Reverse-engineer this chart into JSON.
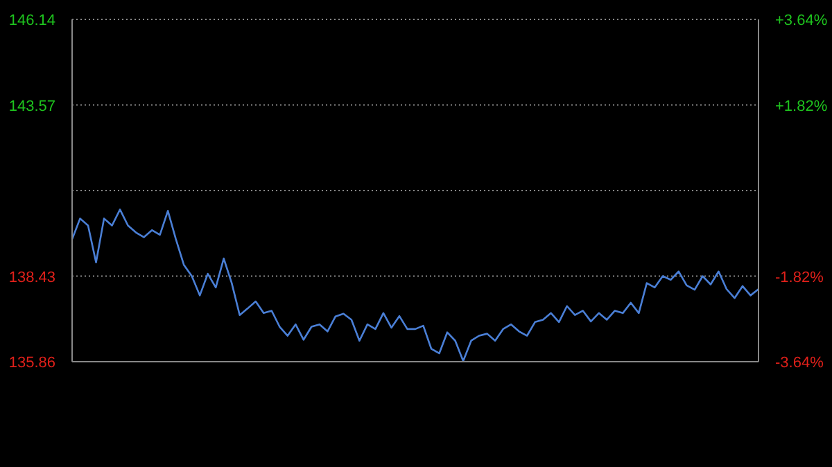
{
  "chart_data": {
    "type": "line",
    "categories": [
      null,
      null,
      null,
      null,
      null,
      null,
      null,
      null,
      null,
      null,
      null,
      null,
      null,
      null,
      null,
      null,
      null,
      null,
      null,
      null,
      null,
      null,
      null,
      null,
      null,
      null,
      null,
      null,
      null,
      null,
      null,
      null,
      null,
      null,
      null,
      null,
      null,
      null,
      null,
      null,
      null,
      null,
      null,
      null,
      null,
      null,
      null,
      null,
      null,
      null,
      null,
      null,
      null,
      null,
      null,
      null,
      null,
      null,
      null,
      null,
      null,
      null,
      null,
      null,
      null,
      null,
      null,
      null,
      null,
      null,
      null,
      null,
      null,
      null,
      null,
      null,
      null,
      null,
      null,
      null,
      null,
      null,
      null,
      null,
      null,
      null,
      null
    ],
    "series": [
      {
        "color": "#4a7fd6",
        "values": [
          139.54,
          140.16,
          139.95,
          138.84,
          140.16,
          139.95,
          140.43,
          139.95,
          139.74,
          139.6,
          139.81,
          139.67,
          140.39,
          139.54,
          138.77,
          138.43,
          137.85,
          138.5,
          138.09,
          138.96,
          138.22,
          137.26,
          137.46,
          137.67,
          137.32,
          137.39,
          136.91,
          136.64,
          136.98,
          136.52,
          136.91,
          136.98,
          136.77,
          137.22,
          137.3,
          137.12,
          136.49,
          136.98,
          136.84,
          137.32,
          136.88,
          137.23,
          136.84,
          136.84,
          136.94,
          136.25,
          136.11,
          136.74,
          136.49,
          135.88,
          136.49,
          136.64,
          136.7,
          136.49,
          136.84,
          136.98,
          136.77,
          136.64,
          137.05,
          137.12,
          137.32,
          137.05,
          137.53,
          137.26,
          137.39,
          137.07,
          137.32,
          137.12,
          137.39,
          137.32,
          137.63,
          137.32,
          138.22,
          138.09,
          138.43,
          138.32,
          138.57,
          138.15,
          138.02,
          138.43,
          138.18,
          138.57,
          138.04,
          137.77,
          138.13,
          137.85,
          138.04
        ]
      }
    ],
    "ylim": [
      135.86,
      146.14
    ],
    "yticks": [
      135.86,
      138.43,
      {
        "value": 141.0,
        "label": null
      },
      143.57,
      146.14
    ],
    "y2lim": [
      -3.64,
      3.64
    ],
    "y2ticks": [
      {
        "value": -3.64,
        "label": "-3.64%"
      },
      {
        "value": -1.82,
        "label": "-1.82%"
      },
      {
        "value": 0,
        "label": null
      },
      {
        "value": 1.82,
        "label": "+1.82%"
      },
      {
        "value": 3.64,
        "label": "+3.64%"
      }
    ],
    "tick_labels": "y",
    "grid": "y",
    "marker": "none"
  }
}
